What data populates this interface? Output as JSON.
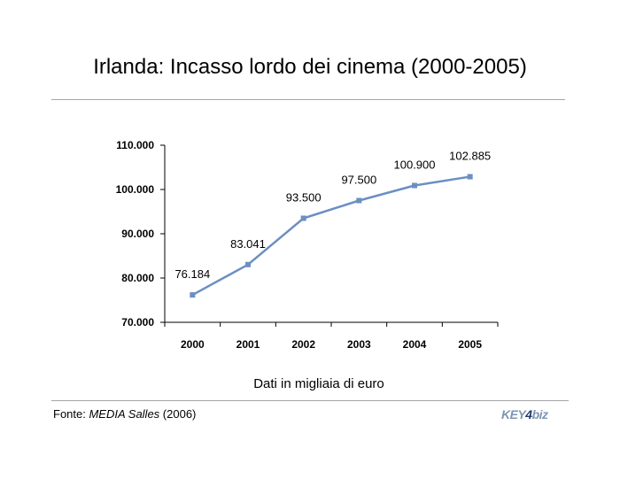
{
  "title": "Irlanda: Incasso lordo dei cinema (2000-2005)",
  "subtitle": "Dati in migliaia di euro",
  "source": {
    "prefix": "Fonte: ",
    "name": "MEDIA Salles",
    "suffix": " (2006)"
  },
  "logo": {
    "part1": "KEY",
    "part2": "4",
    "part3": "biz"
  },
  "colors": {
    "line": "#6b8fc2",
    "marker": "#6b8fc2",
    "rule": "#a6a6a6"
  },
  "chart_data": {
    "type": "line",
    "title": "Irlanda: Incasso lordo dei cinema (2000-2005)",
    "xlabel": "Dati in migliaia di euro",
    "ylabel": "",
    "categories": [
      "2000",
      "2001",
      "2002",
      "2003",
      "2004",
      "2005"
    ],
    "values": [
      76184,
      83041,
      93500,
      97500,
      100900,
      102885
    ],
    "data_labels": [
      "76.184",
      "83.041",
      "93.500",
      "97.500",
      "100.900",
      "102.885"
    ],
    "ylim": [
      70000,
      110000
    ],
    "yticks": [
      70000,
      80000,
      90000,
      100000,
      110000
    ],
    "ytick_labels": [
      "70.000",
      "80.000",
      "90.000",
      "100.000",
      "110.000"
    ],
    "grid": false,
    "legend": "none"
  }
}
